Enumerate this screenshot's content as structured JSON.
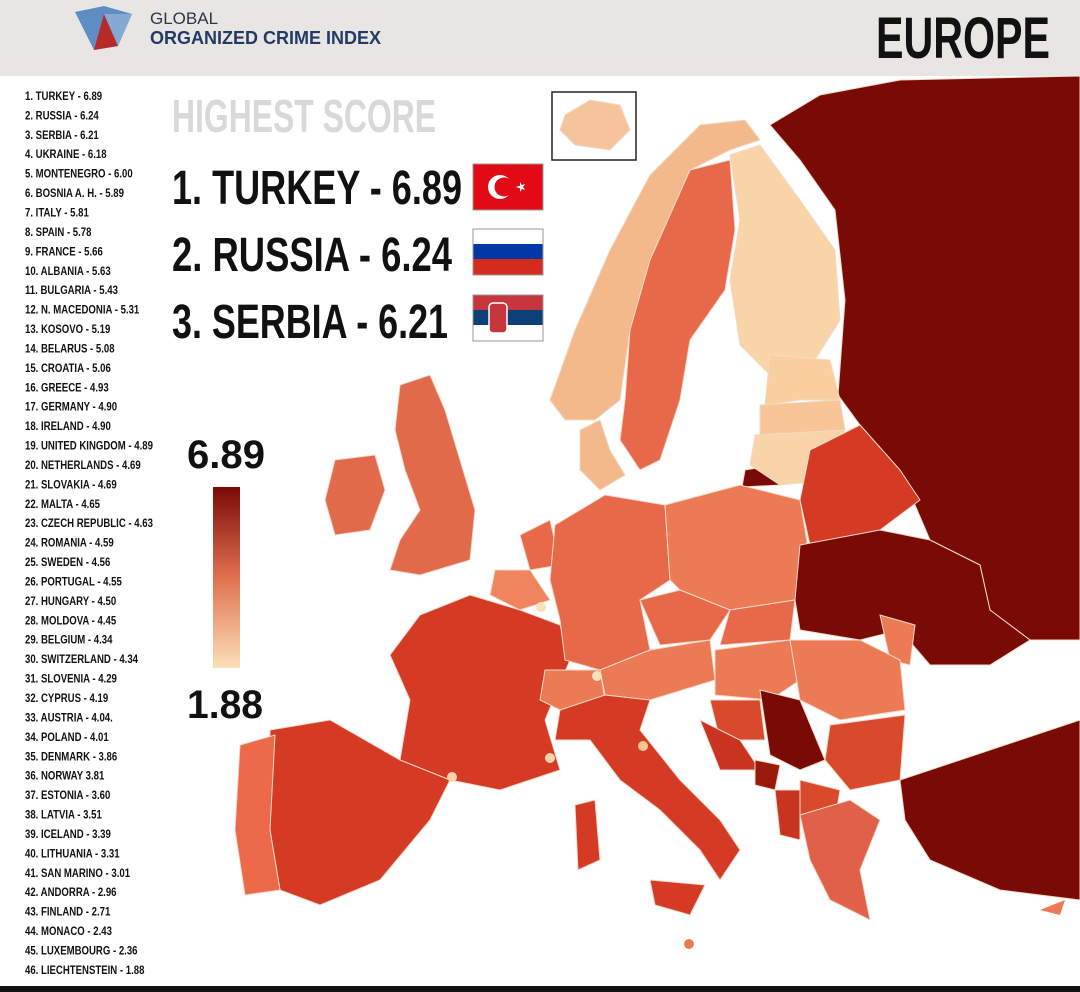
{
  "header": {
    "logo_line1": "GLOBAL",
    "logo_line2": "ORGANIZED CRIME INDEX",
    "region": "EUROPE"
  },
  "ranking": [
    "1. TURKEY - 6.89",
    "2. RUSSIA - 6.24",
    "3. SERBIA - 6.21",
    "4. UKRAINE - 6.18",
    "5. MONTENEGRO - 6.00",
    "6. BOSNIA A. H. - 5.89",
    "7. ITALY - 5.81",
    "8. SPAIN - 5.78",
    "9. FRANCE - 5.66",
    "10. ALBANIA - 5.63",
    "11. BULGARIA - 5.43",
    "12. N. MACEDONIA - 5.31",
    "13. KOSOVO - 5.19",
    "14. BELARUS - 5.08",
    "15. CROATIA - 5.06",
    "16. GREECE - 4.93",
    "17. GERMANY - 4.90",
    "18. IRELAND - 4.90",
    "19. UNITED KINGDOM - 4.89",
    "20. NETHERLANDS - 4.69",
    "21. SLOVAKIA - 4.69",
    "22. MALTA - 4.65",
    "23. CZECH REPUBLIC - 4.63",
    "24. ROMANIA - 4.59",
    "25. SWEDEN - 4.56",
    "26. PORTUGAL - 4.55",
    "27. HUNGARY - 4.50",
    "28. MOLDOVA - 4.45",
    "29. BELGIUM - 4.34",
    "30. SWITZERLAND - 4.34",
    "31. SLOVENIA - 4.29",
    "32. CYPRUS - 4.19",
    "33. AUSTRIA - 4.04.",
    "34. POLAND - 4.01",
    "35. DENMARK - 3.86",
    "36. NORWAY 3.81",
    "37. ESTONIA - 3.60",
    "38. LATVIA - 3.51",
    "39. ICELAND - 3.39",
    "40. LITHUANIA - 3.31",
    "41. SAN MARINO - 3.01",
    "42. ANDORRA - 2.96",
    "43. FINLAND - 2.71",
    "44. MONACO - 2.43",
    "45. LUXEMBOURG - 2.36",
    "46. LIECHTENSTEIN - 1.88"
  ],
  "highest_score": {
    "title": "HIGHEST SCORE",
    "top": [
      "1. TURKEY - 6.89",
      "2. RUSSIA - 6.24",
      "3. SERBIA - 6.21"
    ]
  },
  "legend": {
    "max": "6.89",
    "min": "1.88"
  }
}
